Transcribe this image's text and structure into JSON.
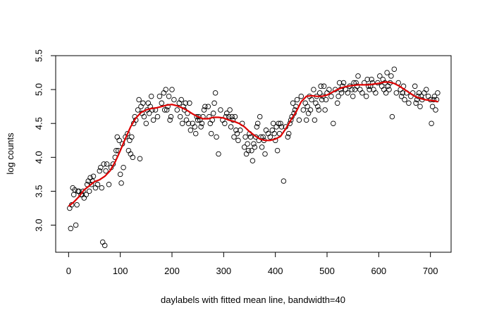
{
  "chart_data": {
    "type": "scatter",
    "xlabel": "daylabels with fitted mean line, bandwidth=40",
    "ylabel": "log counts",
    "xlim": [
      -25,
      740
    ],
    "ylim": [
      2.6,
      5.5
    ],
    "x_ticks": [
      0,
      100,
      200,
      300,
      400,
      500,
      600,
      700
    ],
    "y_ticks": [
      3.0,
      3.5,
      4.0,
      4.5,
      5.0,
      5.5
    ],
    "x_tick_labels": [
      "0",
      "100",
      "200",
      "300",
      "400",
      "500",
      "600",
      "700"
    ],
    "y_tick_labels": [
      "3.0",
      "3.5",
      "4.0",
      "4.5",
      "5.0",
      "5.5"
    ],
    "grid": false,
    "colors": {
      "points": "#000000",
      "fit_line": "#dd0000"
    },
    "series": [
      {
        "kind": "points",
        "x": [
          2,
          4,
          6,
          8,
          10,
          12,
          14,
          16,
          18,
          20,
          24,
          26,
          28,
          30,
          34,
          36,
          38,
          40,
          42,
          44,
          46,
          48,
          52,
          56,
          60,
          62,
          64,
          66,
          68,
          70,
          72,
          74,
          78,
          82,
          86,
          90,
          92,
          94,
          96,
          98,
          100,
          102,
          104,
          106,
          110,
          114,
          116,
          118,
          120,
          122,
          124,
          126,
          128,
          130,
          134,
          136,
          138,
          140,
          142,
          144,
          146,
          150,
          152,
          154,
          156,
          158,
          160,
          162,
          164,
          168,
          172,
          176,
          180,
          184,
          186,
          188,
          190,
          192,
          194,
          196,
          198,
          200,
          204,
          210,
          214,
          216,
          218,
          220,
          222,
          224,
          226,
          228,
          230,
          232,
          234,
          236,
          240,
          244,
          246,
          248,
          250,
          252,
          254,
          256,
          258,
          260,
          262,
          264,
          270,
          272,
          274,
          276,
          278,
          280,
          282,
          284,
          286,
          290,
          294,
          298,
          302,
          304,
          306,
          310,
          312,
          314,
          316,
          318,
          320,
          322,
          324,
          326,
          328,
          332,
          336,
          340,
          342,
          344,
          346,
          348,
          350,
          352,
          354,
          356,
          358,
          360,
          362,
          364,
          366,
          368,
          370,
          372,
          374,
          376,
          378,
          380,
          382,
          386,
          390,
          394,
          396,
          398,
          400,
          402,
          404,
          406,
          408,
          410,
          412,
          416,
          420,
          424,
          426,
          428,
          430,
          432,
          434,
          436,
          438,
          440,
          442,
          446,
          450,
          454,
          458,
          460,
          462,
          464,
          466,
          468,
          470,
          474,
          476,
          478,
          480,
          482,
          484,
          486,
          488,
          490,
          492,
          494,
          496,
          498,
          500,
          504,
          508,
          512,
          516,
          520,
          522,
          524,
          526,
          528,
          530,
          532,
          536,
          540,
          544,
          548,
          550,
          552,
          554,
          556,
          558,
          560,
          564,
          568,
          572,
          576,
          578,
          580,
          582,
          584,
          586,
          588,
          590,
          594,
          598,
          602,
          606,
          608,
          610,
          612,
          614,
          616,
          618,
          620,
          622,
          624,
          626,
          630,
          634,
          638,
          642,
          644,
          646,
          648,
          650,
          654,
          658,
          662,
          666,
          670,
          672,
          674,
          676,
          678,
          680,
          682,
          684,
          688,
          692,
          696,
          700,
          702,
          704,
          706,
          708,
          710,
          712,
          714
        ],
        "y": [
          3.25,
          2.95,
          3.3,
          3.55,
          3.45,
          3.52,
          3.0,
          3.3,
          3.5,
          3.5,
          3.45,
          3.45,
          3.5,
          3.4,
          3.45,
          3.6,
          3.65,
          3.5,
          3.7,
          3.6,
          3.65,
          3.72,
          3.55,
          3.6,
          3.8,
          3.85,
          3.55,
          2.75,
          3.9,
          2.7,
          3.8,
          3.9,
          3.6,
          3.85,
          3.9,
          4.0,
          4.1,
          4.3,
          4.1,
          4.25,
          3.75,
          3.62,
          4.2,
          3.85,
          4.3,
          4.35,
          4.1,
          4.25,
          4.05,
          4.3,
          4.0,
          4.5,
          4.6,
          4.55,
          4.7,
          4.85,
          3.98,
          4.75,
          4.65,
          4.8,
          4.6,
          4.5,
          4.7,
          4.8,
          4.65,
          4.75,
          4.9,
          4.7,
          4.55,
          4.7,
          4.6,
          4.9,
          4.8,
          4.95,
          4.7,
          5.0,
          4.7,
          4.75,
          4.9,
          4.55,
          4.6,
          5.0,
          4.85,
          4.7,
          4.8,
          4.6,
          4.85,
          4.5,
          4.75,
          4.7,
          4.8,
          4.55,
          4.65,
          4.5,
          4.8,
          4.4,
          4.5,
          4.45,
          4.35,
          4.6,
          4.55,
          4.6,
          4.55,
          4.45,
          4.5,
          4.6,
          4.7,
          4.75,
          4.75,
          4.6,
          4.5,
          4.35,
          4.55,
          4.65,
          4.8,
          4.95,
          4.3,
          4.05,
          4.7,
          4.55,
          4.5,
          4.6,
          4.65,
          4.6,
          4.7,
          4.45,
          4.6,
          4.55,
          4.3,
          4.6,
          4.4,
          4.35,
          4.25,
          4.4,
          4.5,
          4.15,
          4.3,
          4.05,
          4.2,
          4.1,
          4.35,
          4.3,
          4.1,
          3.95,
          4.2,
          4.15,
          4.3,
          4.45,
          4.5,
          4.25,
          4.6,
          4.3,
          4.15,
          4.3,
          4.25,
          4.05,
          4.4,
          4.35,
          4.3,
          4.4,
          4.5,
          4.35,
          4.25,
          4.45,
          4.1,
          4.5,
          4.35,
          4.5,
          4.45,
          3.65,
          4.45,
          4.3,
          4.35,
          4.5,
          4.55,
          4.6,
          4.8,
          4.65,
          4.7,
          4.75,
          4.85,
          4.55,
          4.9,
          4.7,
          4.8,
          4.55,
          4.75,
          4.65,
          4.9,
          4.7,
          4.85,
          5.0,
          4.55,
          4.8,
          4.9,
          4.75,
          4.7,
          4.95,
          5.05,
          4.85,
          4.9,
          5.05,
          4.7,
          4.85,
          4.95,
          5.0,
          4.9,
          4.5,
          5.0,
          4.8,
          4.9,
          5.1,
          5.0,
          4.95,
          5.05,
          5.1,
          5.0,
          4.95,
          5.05,
          5.0,
          4.9,
          5.1,
          5.0,
          5.1,
          5.05,
          5.2,
          5.0,
          4.95,
          5.1,
          4.9,
          5.15,
          5.05,
          5.0,
          5.05,
          5.15,
          5.1,
          5.0,
          4.95,
          5.1,
          5.2,
          5.05,
          5.15,
          5.0,
          5.1,
          4.95,
          5.25,
          5.05,
          5.0,
          5.1,
          5.2,
          4.6,
          5.3,
          4.95,
          5.1,
          5.0,
          4.9,
          4.95,
          5.05,
          4.85,
          4.95,
          4.8,
          4.9,
          4.95,
          5.05,
          4.8,
          4.85,
          4.9,
          4.95,
          4.75,
          4.9,
          4.85,
          4.95,
          5.0,
          4.9,
          4.85,
          4.5,
          4.75,
          4.85,
          4.9,
          4.7,
          4.85,
          4.95
        ]
      },
      {
        "kind": "line",
        "x": [
          0,
          10,
          20,
          30,
          40,
          50,
          60,
          70,
          80,
          90,
          100,
          110,
          120,
          130,
          140,
          150,
          160,
          170,
          180,
          190,
          200,
          210,
          220,
          230,
          240,
          250,
          260,
          270,
          280,
          290,
          300,
          310,
          320,
          330,
          340,
          350,
          360,
          370,
          380,
          390,
          400,
          410,
          420,
          430,
          440,
          450,
          460,
          470,
          480,
          490,
          500,
          510,
          520,
          530,
          540,
          550,
          560,
          570,
          580,
          590,
          600,
          610,
          620,
          630,
          640,
          650,
          660,
          670,
          680,
          690,
          700,
          710,
          715
        ],
        "y": [
          3.28,
          3.34,
          3.42,
          3.52,
          3.58,
          3.64,
          3.67,
          3.72,
          3.8,
          3.93,
          4.1,
          4.28,
          4.45,
          4.58,
          4.66,
          4.7,
          4.72,
          4.73,
          4.75,
          4.77,
          4.78,
          4.76,
          4.73,
          4.69,
          4.64,
          4.6,
          4.57,
          4.57,
          4.59,
          4.59,
          4.58,
          4.55,
          4.53,
          4.5,
          4.45,
          4.38,
          4.32,
          4.27,
          4.25,
          4.25,
          4.27,
          4.31,
          4.42,
          4.55,
          4.67,
          4.82,
          4.9,
          4.91,
          4.9,
          4.9,
          4.92,
          4.96,
          5.0,
          5.03,
          5.05,
          5.06,
          5.07,
          5.07,
          5.07,
          5.08,
          5.09,
          5.11,
          5.11,
          5.09,
          5.05,
          5.0,
          4.95,
          4.9,
          4.87,
          4.85,
          4.84,
          4.83,
          4.82
        ]
      }
    ]
  }
}
